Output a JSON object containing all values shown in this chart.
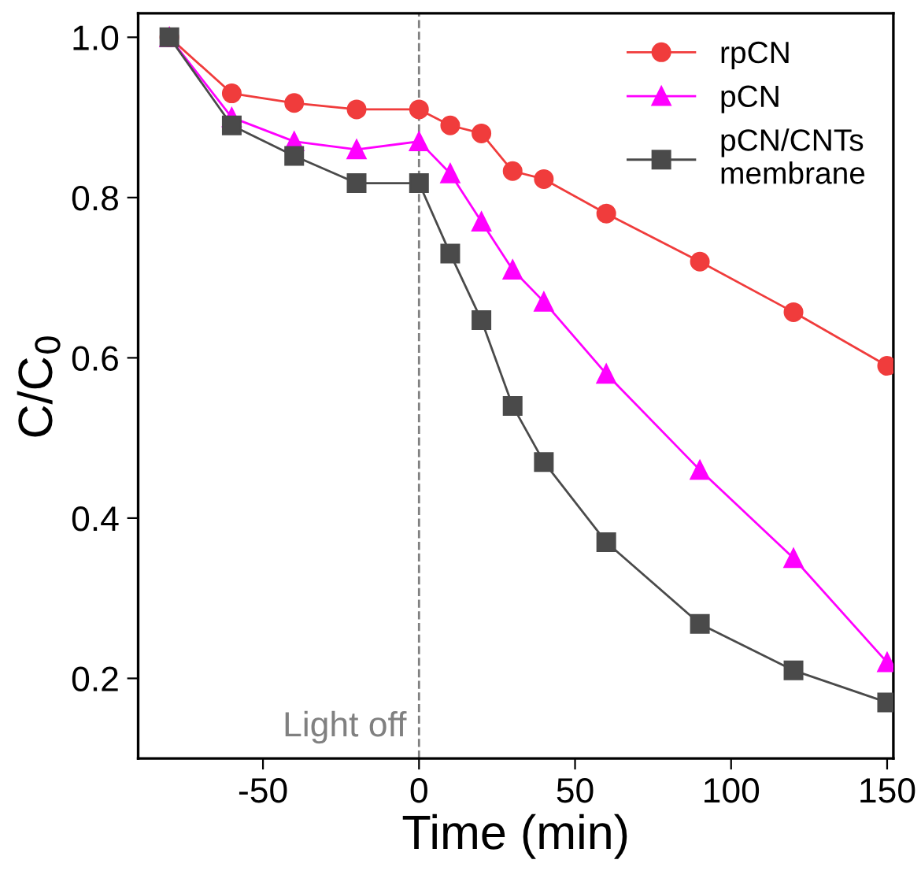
{
  "chart_data": {
    "type": "line",
    "xlabel": "Time (min)",
    "ylabel": "C/C$_{0}$",
    "x": [
      -80,
      -60,
      -40,
      -20,
      0,
      10,
      20,
      30,
      40,
      60,
      90,
      120,
      150
    ],
    "series": [
      {
        "name": "rpCN",
        "color": "#f03c3c",
        "marker": "circle",
        "values": [
          1.0,
          0.93,
          0.918,
          0.91,
          0.91,
          0.89,
          0.88,
          0.833,
          0.823,
          0.78,
          0.72,
          0.657,
          0.59
        ]
      },
      {
        "name": "pCN",
        "color": "#ff00ff",
        "marker": "triangle",
        "values": [
          1.0,
          0.9,
          0.87,
          0.86,
          0.87,
          0.83,
          0.77,
          0.71,
          0.67,
          0.58,
          0.46,
          0.35,
          0.22
        ]
      },
      {
        "name": "pCN/CNTs\nmembrane",
        "color": "#4a4a4a",
        "marker": "square",
        "values": [
          1.0,
          0.89,
          0.852,
          0.818,
          0.818,
          0.73,
          0.647,
          0.54,
          0.47,
          0.37,
          0.268,
          0.21,
          0.17
        ]
      }
    ],
    "xlim": [
      -90,
      152
    ],
    "xticks": [
      -50,
      0,
      50,
      100,
      150
    ],
    "ylim": [
      0.1,
      1.03
    ],
    "yticks": [
      0.2,
      0.4,
      0.6,
      0.8,
      {
        "value": 1,
        "label": "1.0"
      }
    ],
    "ref_lines": [
      {
        "axis": "x",
        "value": 0,
        "label": "Light off",
        "color": "#808080",
        "line_style": "dashed"
      }
    ],
    "legend": "top right",
    "grid": false
  }
}
